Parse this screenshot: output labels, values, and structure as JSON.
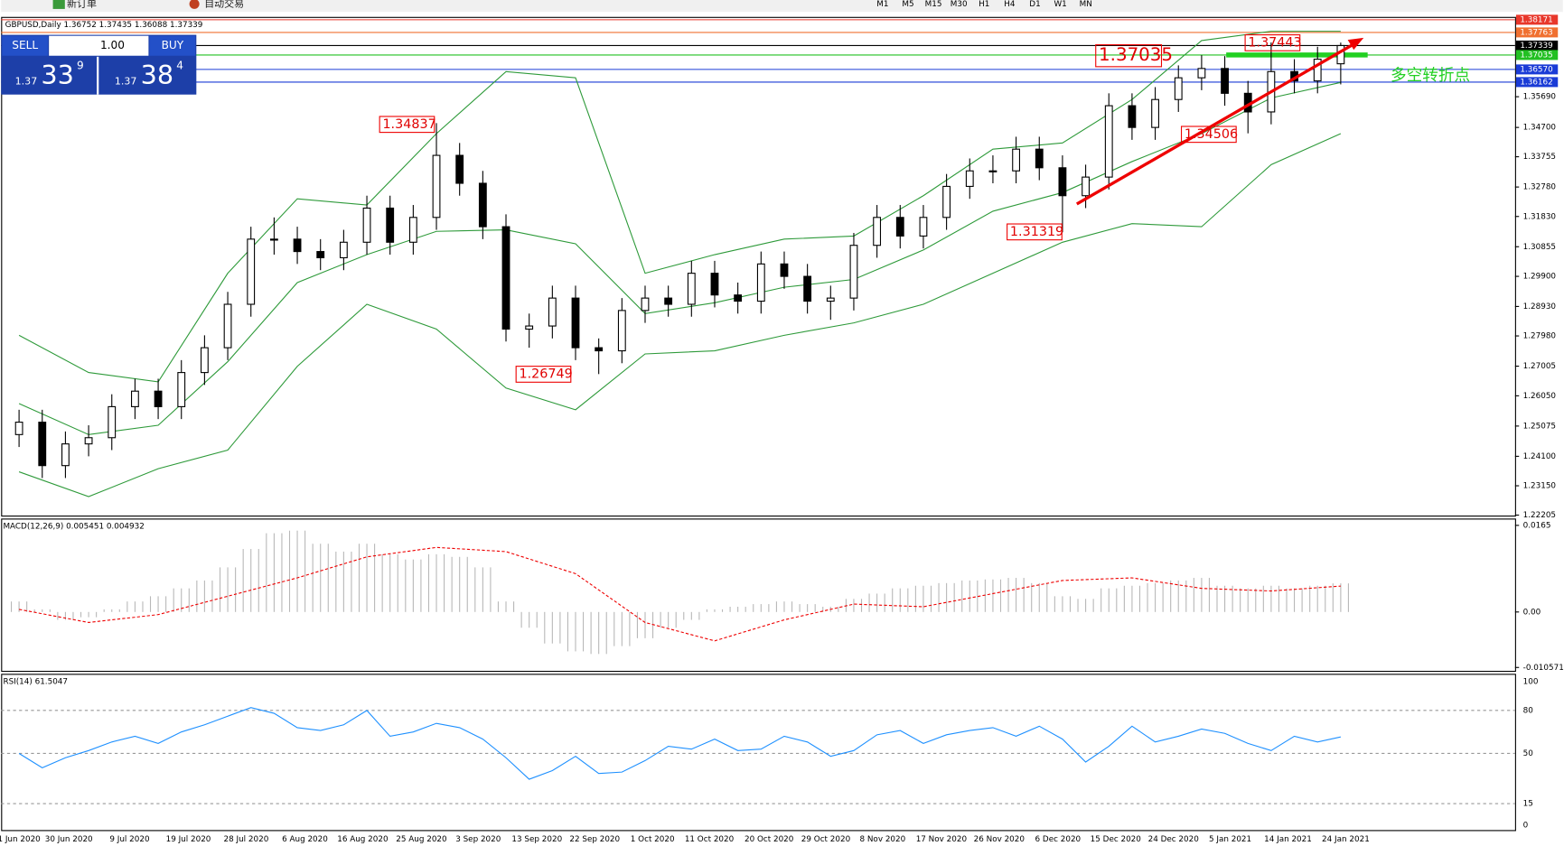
{
  "toolbar": {
    "new_order": "新订单",
    "auto_trading": "自动交易",
    "timeframes": [
      "M1",
      "M5",
      "M15",
      "M30",
      "H1",
      "H4",
      "D1",
      "W1",
      "MN"
    ]
  },
  "trade_panel": {
    "sell": "SELL",
    "buy": "BUY",
    "lots": "1.00",
    "sell_big": "1.37",
    "sell_pips": "33",
    "sell_point": "9",
    "buy_big": "1.37",
    "buy_pips": "38",
    "buy_point": "4"
  },
  "chart_data": {
    "type": "candlestick",
    "title": "GBPUSD,Daily  1.36752 1.37435 1.36088 1.37339",
    "ylim": [
      1.2219,
      1.3823
    ],
    "yticks": [
      {
        "value": 1.3569,
        "label": "1.35690"
      },
      {
        "value": 1.347,
        "label": "1.34700"
      },
      {
        "value": 1.33755,
        "label": "1.33755"
      },
      {
        "value": 1.3278,
        "label": "1.32780"
      },
      {
        "value": 1.3183,
        "label": "1.31830"
      },
      {
        "value": 1.30855,
        "label": "1.30855"
      },
      {
        "value": 1.299,
        "label": "1.29900"
      },
      {
        "value": 1.2893,
        "label": "1.28930"
      },
      {
        "value": 1.2798,
        "label": "1.27980"
      },
      {
        "value": 1.27005,
        "label": "1.27005"
      },
      {
        "value": 1.2605,
        "label": "1.26050"
      },
      {
        "value": 1.25075,
        "label": "1.25075"
      },
      {
        "value": 1.241,
        "label": "1.24100"
      },
      {
        "value": 1.2315,
        "label": "1.23150"
      },
      {
        "value": 1.22205,
        "label": "1.22205"
      }
    ],
    "levels": [
      {
        "value": 1.38171,
        "label": "1.38171",
        "color": "#e8372b"
      },
      {
        "value": 1.37763,
        "label": "1.37763",
        "color": "#f07030"
      },
      {
        "value": 1.37339,
        "label": "1.37339",
        "color": "#000000"
      },
      {
        "value": 1.37035,
        "label": "1.37035",
        "color": "#22c022"
      },
      {
        "value": 1.3657,
        "label": "1.36570",
        "color": "#1a3bd6"
      },
      {
        "value": 1.36162,
        "label": "1.36162",
        "color": "#1a3bd6"
      }
    ],
    "dates": [
      "1 Jun 2020",
      "30 Jun 2020",
      "9 Jul 2020",
      "19 Jul 2020",
      "28 Jul 2020",
      "6 Aug 2020",
      "16 Aug 2020",
      "25 Aug 2020",
      "3 Sep 2020",
      "13 Sep 2020",
      "22 Sep 2020",
      "1 Oct 2020",
      "11 Oct 2020",
      "20 Oct 2020",
      "29 Oct 2020",
      "8 Nov 2020",
      "17 Nov 2020",
      "26 Nov 2020",
      "6 Dec 2020",
      "15 Dec 2020",
      "24 Dec 2020",
      "5 Jan 2021",
      "14 Jan 2021",
      "24 Jan 2021"
    ],
    "candles": [
      [
        1.248,
        1.256,
        1.244,
        1.252
      ],
      [
        1.252,
        1.256,
        1.234,
        1.238
      ],
      [
        1.238,
        1.249,
        1.234,
        1.245
      ],
      [
        1.245,
        1.251,
        1.241,
        1.247
      ],
      [
        1.247,
        1.261,
        1.243,
        1.257
      ],
      [
        1.257,
        1.266,
        1.253,
        1.262
      ],
      [
        1.262,
        1.266,
        1.253,
        1.257
      ],
      [
        1.257,
        1.272,
        1.253,
        1.268
      ],
      [
        1.268,
        1.28,
        1.264,
        1.276
      ],
      [
        1.276,
        1.294,
        1.272,
        1.29
      ],
      [
        1.29,
        1.315,
        1.286,
        1.311
      ],
      [
        1.311,
        1.318,
        1.306,
        1.311
      ],
      [
        1.311,
        1.315,
        1.303,
        1.307
      ],
      [
        1.307,
        1.311,
        1.301,
        1.305
      ],
      [
        1.305,
        1.314,
        1.301,
        1.31
      ],
      [
        1.31,
        1.325,
        1.306,
        1.321
      ],
      [
        1.321,
        1.325,
        1.306,
        1.31
      ],
      [
        1.31,
        1.322,
        1.306,
        1.318
      ],
      [
        1.318,
        1.3484,
        1.314,
        1.338
      ],
      [
        1.338,
        1.342,
        1.325,
        1.329
      ],
      [
        1.329,
        1.333,
        1.311,
        1.315
      ],
      [
        1.315,
        1.319,
        1.278,
        1.282
      ],
      [
        1.282,
        1.287,
        1.276,
        1.283
      ],
      [
        1.283,
        1.296,
        1.279,
        1.292
      ],
      [
        1.292,
        1.296,
        1.272,
        1.276
      ],
      [
        1.276,
        1.279,
        1.2675,
        1.275
      ],
      [
        1.275,
        1.292,
        1.271,
        1.288
      ],
      [
        1.288,
        1.296,
        1.284,
        1.292
      ],
      [
        1.292,
        1.296,
        1.286,
        1.29
      ],
      [
        1.29,
        1.304,
        1.286,
        1.3
      ],
      [
        1.3,
        1.304,
        1.289,
        1.293
      ],
      [
        1.293,
        1.297,
        1.287,
        1.291
      ],
      [
        1.291,
        1.307,
        1.287,
        1.303
      ],
      [
        1.303,
        1.307,
        1.295,
        1.299
      ],
      [
        1.299,
        1.303,
        1.287,
        1.291
      ],
      [
        1.291,
        1.296,
        1.285,
        1.292
      ],
      [
        1.292,
        1.313,
        1.288,
        1.309
      ],
      [
        1.309,
        1.322,
        1.305,
        1.318
      ],
      [
        1.318,
        1.322,
        1.308,
        1.312
      ],
      [
        1.312,
        1.322,
        1.308,
        1.318
      ],
      [
        1.318,
        1.332,
        1.314,
        1.328
      ],
      [
        1.328,
        1.337,
        1.324,
        1.333
      ],
      [
        1.333,
        1.338,
        1.329,
        1.333
      ],
      [
        1.333,
        1.344,
        1.329,
        1.34
      ],
      [
        1.34,
        1.344,
        1.33,
        1.334
      ],
      [
        1.334,
        1.338,
        1.3132,
        1.325
      ],
      [
        1.325,
        1.335,
        1.321,
        1.331
      ],
      [
        1.331,
        1.358,
        1.327,
        1.354
      ],
      [
        1.354,
        1.358,
        1.343,
        1.347
      ],
      [
        1.347,
        1.36,
        1.343,
        1.356
      ],
      [
        1.356,
        1.367,
        1.352,
        1.363
      ],
      [
        1.363,
        1.3703,
        1.359,
        1.366
      ],
      [
        1.366,
        1.37,
        1.354,
        1.358
      ],
      [
        1.358,
        1.362,
        1.3451,
        1.352
      ],
      [
        1.352,
        1.3744,
        1.348,
        1.365
      ],
      [
        1.365,
        1.369,
        1.358,
        1.362
      ],
      [
        1.362,
        1.373,
        1.358,
        1.369
      ],
      [
        1.36752,
        1.37435,
        1.36088,
        1.37339
      ]
    ],
    "bands": {
      "upper": [
        1.28,
        1.268,
        1.265,
        1.3,
        1.324,
        1.322,
        1.345,
        1.365,
        1.363,
        1.3,
        1.306,
        1.311,
        1.312,
        1.325,
        1.34,
        1.342,
        1.356,
        1.375,
        1.378,
        1.378
      ],
      "middle": [
        1.258,
        1.248,
        1.251,
        1.2715,
        1.297,
        1.306,
        1.3135,
        1.314,
        1.3095,
        1.287,
        1.2905,
        1.2955,
        1.298,
        1.3075,
        1.32,
        1.326,
        1.336,
        1.345,
        1.3565,
        1.3615
      ],
      "lower": [
        1.236,
        1.228,
        1.237,
        1.243,
        1.27,
        1.29,
        1.282,
        1.263,
        1.256,
        1.274,
        1.275,
        1.28,
        1.284,
        1.29,
        1.3,
        1.31,
        1.316,
        1.315,
        1.335,
        1.345
      ]
    },
    "annotations": [
      "1.34837",
      "1.26749",
      "1.31319",
      "1.37035",
      "1.37443",
      "1.34506",
      "多空转折点"
    ]
  },
  "macd": {
    "title": "MACD(12,26,9) 0.005451 0.004932",
    "ylim": [
      -0.0114,
      0.0178
    ],
    "yticks": [
      0.0165,
      {
        "value": 0,
        "label": "0.00"
      },
      -0.010571
    ],
    "histogram": [
      0.002,
      0.0005,
      -0.0015,
      -0.001,
      0.0005,
      0.002,
      0.003,
      0.0045,
      0.006,
      0.0085,
      0.012,
      0.015,
      0.0155,
      0.013,
      0.0115,
      0.013,
      0.011,
      0.01,
      0.011,
      0.0105,
      0.0085,
      0.002,
      -0.003,
      -0.006,
      -0.0075,
      -0.008,
      -0.0065,
      -0.005,
      -0.003,
      -0.0015,
      0.0005,
      0.001,
      0.0015,
      0.002,
      0.0015,
      0.001,
      0.0025,
      0.0035,
      0.0045,
      0.005,
      0.0055,
      0.006,
      0.0062,
      0.0065,
      0.0055,
      0.003,
      0.0025,
      0.0045,
      0.005,
      0.0055,
      0.006,
      0.0065,
      0.005,
      0.0045,
      0.005,
      0.0045,
      0.005,
      0.005451
    ],
    "signal": [
      0.0005,
      -0.002,
      -0.0005,
      0.003,
      0.0065,
      0.0105,
      0.0123,
      0.0115,
      0.0073,
      -0.002,
      -0.0055,
      -0.0015,
      0.0015,
      0.001,
      0.0035,
      0.006,
      0.0065,
      0.0045,
      0.004,
      0.004932
    ]
  },
  "rsi": {
    "title": "RSI(14) 61.5047",
    "ylim": [
      0,
      100
    ],
    "yticks": [
      100,
      80,
      50,
      15,
      0
    ],
    "values": [
      50,
      40,
      47,
      52,
      58,
      62,
      57,
      65,
      70,
      76,
      82,
      78,
      68,
      66,
      70,
      80,
      62,
      65,
      71,
      68,
      60,
      47,
      32,
      38,
      48,
      36,
      37,
      45,
      55,
      53,
      60,
      52,
      53,
      62,
      58,
      48,
      52,
      63,
      66,
      57,
      63,
      66,
      68,
      62,
      69,
      60,
      44,
      55,
      69,
      58,
      62,
      67,
      64,
      57,
      52,
      62,
      58,
      61.5047
    ]
  }
}
